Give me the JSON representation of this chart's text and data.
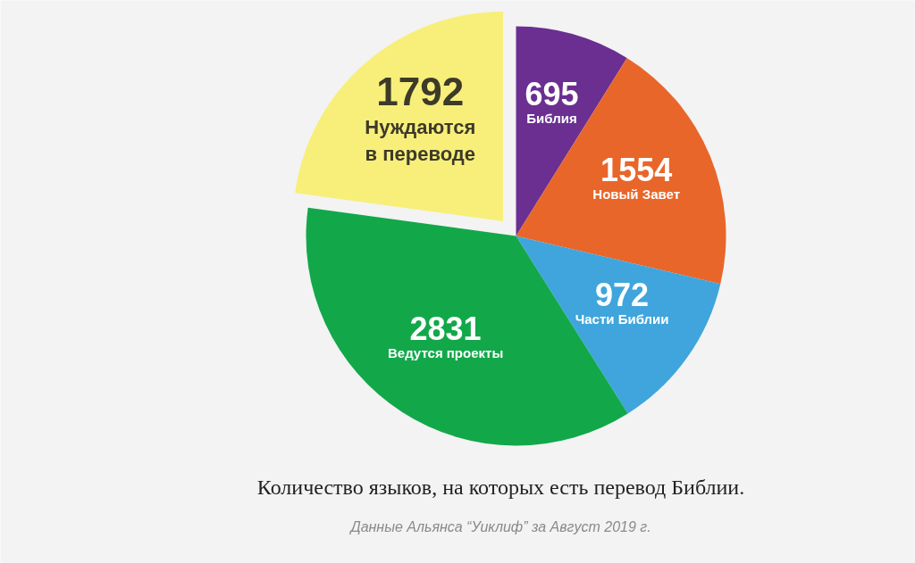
{
  "chart_data": {
    "type": "pie",
    "categories": [
      "Библия",
      "Новый Завет",
      "Части Библии",
      "Ведутся проекты",
      "Нуждаются в переводе"
    ],
    "values": [
      695,
      1554,
      972,
      2831,
      1792
    ],
    "colors": [
      "#6a2f91",
      "#e8662a",
      "#3fa5dc",
      "#12a84a",
      "#f7ef7a"
    ],
    "data_labels": true,
    "legend": false,
    "annotations": [
      "Количество языков, на которых есть перевод Библии.",
      "Данные Альянса “Уиклиф” за Август 2019 г."
    ]
  }
}
